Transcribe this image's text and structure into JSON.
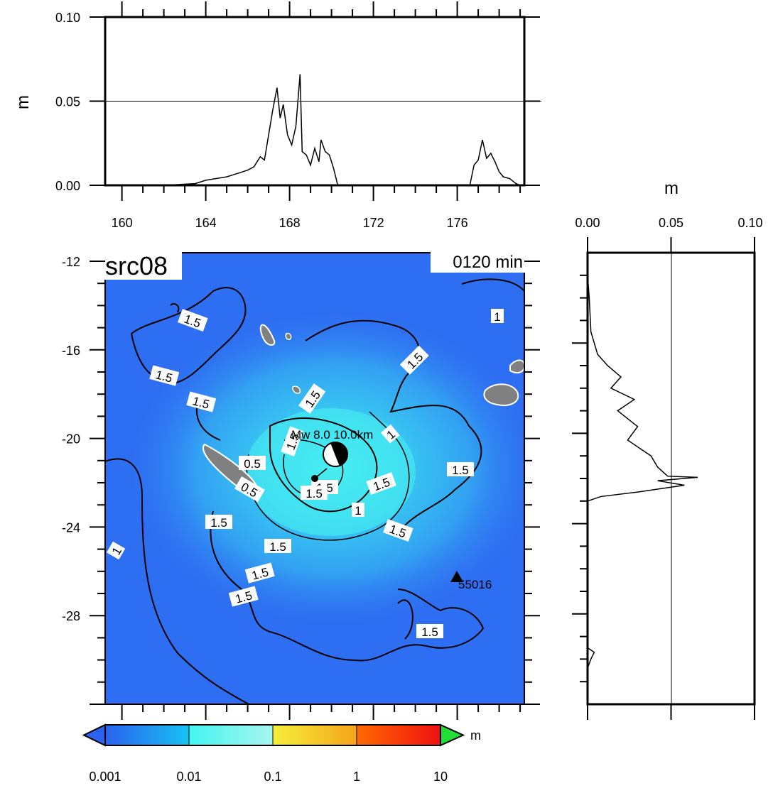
{
  "chart_data": [
    {
      "id": "top-profile",
      "type": "line",
      "ylabel": "m",
      "xlim": [
        159.2,
        179.2
      ],
      "ylim": [
        0,
        0.1
      ],
      "xticks": [
        160,
        164,
        168,
        172,
        176
      ],
      "yticks": [
        0.0,
        0.05,
        0.1
      ],
      "ytick_labels": [
        "0.00",
        "0.05",
        "0.10"
      ],
      "gridline_y": 0.05,
      "series": [
        {
          "segments": [
            [
              [
                159.2,
                0
              ],
              [
                162,
                0
              ],
              [
                163.5,
                0.001
              ],
              [
                164,
                0.003
              ],
              [
                164.5,
                0.004
              ],
              [
                165,
                0.005
              ],
              [
                165.5,
                0.007
              ],
              [
                166,
                0.009
              ],
              [
                166.3,
                0.011
              ],
              [
                166.6,
                0.017
              ],
              [
                166.8,
                0.015
              ],
              [
                167,
                0.03
              ],
              [
                167.2,
                0.045
              ],
              [
                167.4,
                0.058
              ],
              [
                167.55,
                0.04
              ],
              [
                167.7,
                0.048
              ],
              [
                167.9,
                0.03
              ],
              [
                168.1,
                0.024
              ],
              [
                168.3,
                0.035
              ],
              [
                168.5,
                0.066
              ],
              [
                168.6,
                0.02
              ],
              [
                168.8,
                0.018
              ],
              [
                169,
                0.012
              ],
              [
                169.2,
                0.022
              ],
              [
                169.4,
                0.014
              ],
              [
                169.5,
                0.027
              ],
              [
                169.7,
                0.02
              ],
              [
                169.9,
                0.018
              ],
              [
                170.1,
                0.01
              ],
              [
                170.3,
                0.0
              ]
            ],
            [
              [
                176.6,
                0
              ],
              [
                176.8,
                0.012
              ],
              [
                177,
                0.015
              ],
              [
                177.2,
                0.027
              ],
              [
                177.4,
                0.016
              ],
              [
                177.6,
                0.019
              ],
              [
                177.8,
                0.014
              ],
              [
                178,
                0.008
              ],
              [
                178.2,
                0.005
              ],
              [
                178.5,
                0.004
              ],
              [
                178.8,
                0.001
              ],
              [
                179,
                0
              ]
            ]
          ]
        }
      ]
    },
    {
      "id": "right-profile",
      "type": "line",
      "xlabel": "m",
      "xlim": [
        0,
        0.1
      ],
      "ylim": [
        -32,
        -12
      ],
      "xticks": [
        0.0,
        0.05,
        0.1
      ],
      "xtick_labels": [
        "0.00",
        "0.05",
        "0.10"
      ],
      "gridline_x": 0.05,
      "series": [
        {
          "segments": [
            [
              [
                0,
                -13
              ],
              [
                0.001,
                -14
              ],
              [
                0.002,
                -15.5
              ],
              [
                0.006,
                -16.5
              ],
              [
                0.012,
                -17
              ],
              [
                0.02,
                -17.5
              ],
              [
                0.014,
                -18
              ],
              [
                0.028,
                -18.5
              ],
              [
                0.018,
                -19
              ],
              [
                0.03,
                -19.7
              ],
              [
                0.024,
                -20.3
              ],
              [
                0.038,
                -21
              ],
              [
                0.042,
                -21.5
              ],
              [
                0.048,
                -21.9
              ],
              [
                0.066,
                -21.95
              ],
              [
                0.042,
                -22.1
              ],
              [
                0.058,
                -22.3
              ],
              [
                0.03,
                -22.6
              ],
              [
                0.008,
                -22.8
              ],
              [
                0,
                -23
              ]
            ],
            [
              [
                0,
                -29.5
              ],
              [
                0.004,
                -29.7
              ],
              [
                0.002,
                -30
              ],
              [
                0,
                -30.4
              ]
            ]
          ]
        }
      ]
    },
    {
      "id": "map",
      "type": "heatmap",
      "title": "src08",
      "time_label": "0120 min",
      "xlim": [
        159.2,
        179.2
      ],
      "ylim": [
        -32,
        -12
      ],
      "xticks": [
        160,
        164,
        168,
        172,
        176
      ],
      "yticks": [
        -12,
        -16,
        -20,
        -24,
        -28
      ],
      "contour_labels": [
        "1.5",
        "1.5",
        "1.5",
        "1.5",
        "1.5",
        "1",
        "1",
        "1.5",
        "0.5",
        "0.5",
        "1.5",
        "1",
        "1.5",
        "1.5",
        "1.5",
        "1.5",
        "1.5",
        "1.5",
        "1.5",
        "1",
        "1.5",
        "1.5"
      ],
      "station": {
        "name": "55016",
        "lon": 176,
        "lat": -26
      },
      "source_label": "Mw 8.0 10.0km",
      "source_lonlat": [
        170.2,
        -20.6
      ]
    }
  ],
  "colorbar": {
    "unit": "m",
    "ticks": [
      "0.001",
      "0.01",
      "0.1",
      "1",
      "10"
    ],
    "colors": [
      "#2b62f0",
      "#17c3f2",
      "#42f5f0",
      "#f5ee3a",
      "#ff6a00",
      "#ee1010"
    ],
    "underflow_color": "#2b62f0",
    "overflow_color": "#22dd33"
  },
  "colors": {
    "ocean": "#2e6ef2",
    "land": "#808080",
    "axis": "#000000"
  }
}
